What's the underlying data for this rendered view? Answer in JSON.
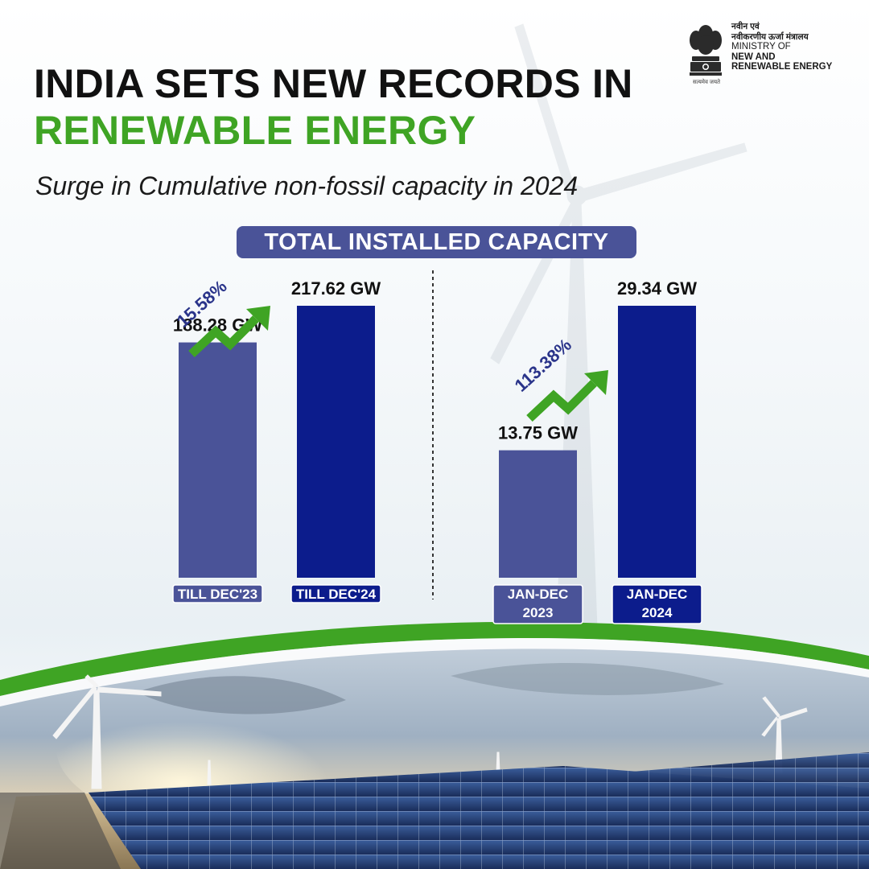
{
  "header": {
    "title_line1": "INDIA SETS NEW RECORDS IN",
    "title_line2": "RENEWABLE ENERGY",
    "subtitle": "Surge in Cumulative non-fossil capacity in 2024",
    "section_label": "TOTAL INSTALLED CAPACITY"
  },
  "ministry": {
    "hindi_line1": "नवीन एवं",
    "hindi_line2": "नवीकरणीय ऊर्जा मंत्रालय",
    "en_line1": "MINISTRY OF",
    "en_line2": "NEW AND",
    "en_line3": "RENEWABLE ENERGY",
    "motto": "सत्यमेव जयते"
  },
  "colors": {
    "bar_2023": "#4a5398",
    "bar_2024": "#0c1c8c",
    "accent_green": "#3fa424",
    "pill": "#4a5398"
  },
  "chart_data": [
    {
      "type": "bar",
      "categories": [
        "TILL DEC'23",
        "TILL DEC'24"
      ],
      "values": [
        188.28,
        217.62
      ],
      "value_labels": [
        "188.28 GW",
        "217.62 GW"
      ],
      "unit": "GW",
      "growth_label": "15.58%"
    },
    {
      "type": "bar",
      "categories": [
        "JAN-DEC 2023",
        "JAN-DEC 2024"
      ],
      "category_lines": [
        [
          "JAN-DEC",
          "2023"
        ],
        [
          "JAN-DEC",
          "2024"
        ]
      ],
      "values": [
        13.75,
        29.34
      ],
      "value_labels": [
        "13.75 GW",
        "29.34 GW"
      ],
      "unit": "GW",
      "growth_label": "113.38%"
    }
  ]
}
